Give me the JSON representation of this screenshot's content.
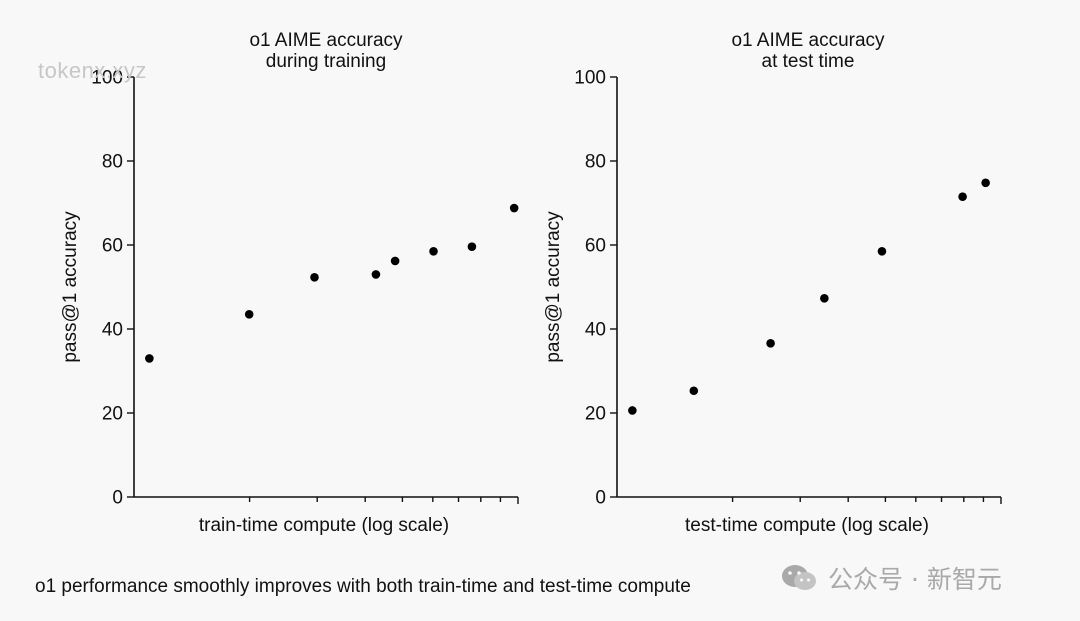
{
  "chart_data": [
    {
      "type": "scatter",
      "title": [
        "o1 AIME accuracy",
        "during training"
      ],
      "xlabel": "train-time compute (log scale)",
      "ylabel": "pass@1 accuracy",
      "ylim": [
        0,
        100
      ],
      "yticks": [
        0,
        20,
        40,
        60,
        80,
        100
      ],
      "xscale": "log",
      "xlim_log10": [
        0,
        1
      ],
      "series": [
        {
          "name": "o1 AIME accuracy during training",
          "x_log10": [
            0.04,
            0.3,
            0.47,
            0.63,
            0.68,
            0.78,
            0.88,
            0.99
          ],
          "y": [
            33,
            43.5,
            52.3,
            53,
            56.2,
            58.5,
            59.6,
            68.8
          ]
        }
      ]
    },
    {
      "type": "scatter",
      "title": [
        "o1 AIME accuracy",
        "at test time"
      ],
      "xlabel": "test-time compute (log scale)",
      "ylabel": "pass@1 accuracy",
      "ylim": [
        0,
        100
      ],
      "yticks": [
        0,
        20,
        40,
        60,
        80,
        100
      ],
      "xscale": "log",
      "xlim_log10": [
        0,
        1
      ],
      "series": [
        {
          "name": "o1 AIME accuracy at test time",
          "x_log10": [
            0.04,
            0.2,
            0.4,
            0.54,
            0.69,
            0.9,
            0.96
          ],
          "y": [
            20.6,
            25.3,
            36.6,
            47.3,
            58.5,
            71.5,
            74.8
          ]
        }
      ]
    }
  ],
  "caption": "o1 performance smoothly improves with both train-time and test-time compute",
  "watermark": "tokenx.xyz",
  "source_badge": {
    "icon": "wechat-icon",
    "text": "公众号 · 新智元"
  }
}
